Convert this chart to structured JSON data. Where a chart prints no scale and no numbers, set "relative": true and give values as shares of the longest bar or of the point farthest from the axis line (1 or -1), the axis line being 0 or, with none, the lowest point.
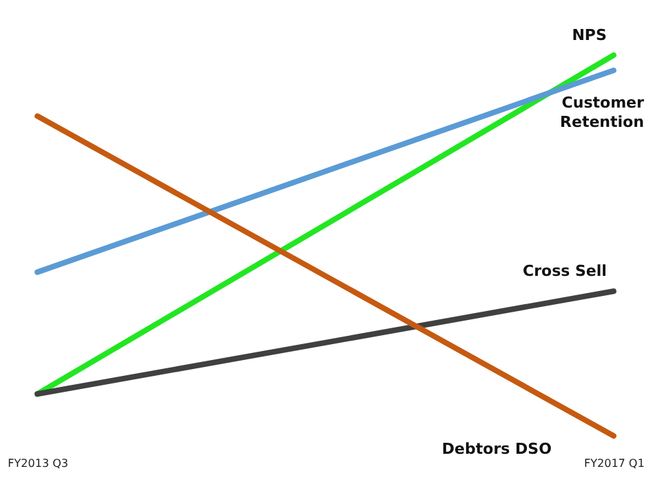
{
  "chart_data": {
    "type": "line",
    "relative": true,
    "categories": [
      "FY2013 Q3",
      "FY2017 Q1"
    ],
    "legend": false,
    "line_style": "solid",
    "marker": "none",
    "series": [
      {
        "name": "NPS",
        "color": "#22e622",
        "values": [
          0.11,
          1
        ]
      },
      {
        "name": "Customer Retention",
        "color": "#5b9bd5",
        "values": [
          0.43,
          0.96
        ]
      },
      {
        "name": "Cross Sell",
        "color": "#404040",
        "values": [
          0.11,
          0.38
        ]
      },
      {
        "name": "Debtors DSO",
        "color": "#c55a11",
        "values": [
          0.84,
          0
        ]
      }
    ]
  }
}
